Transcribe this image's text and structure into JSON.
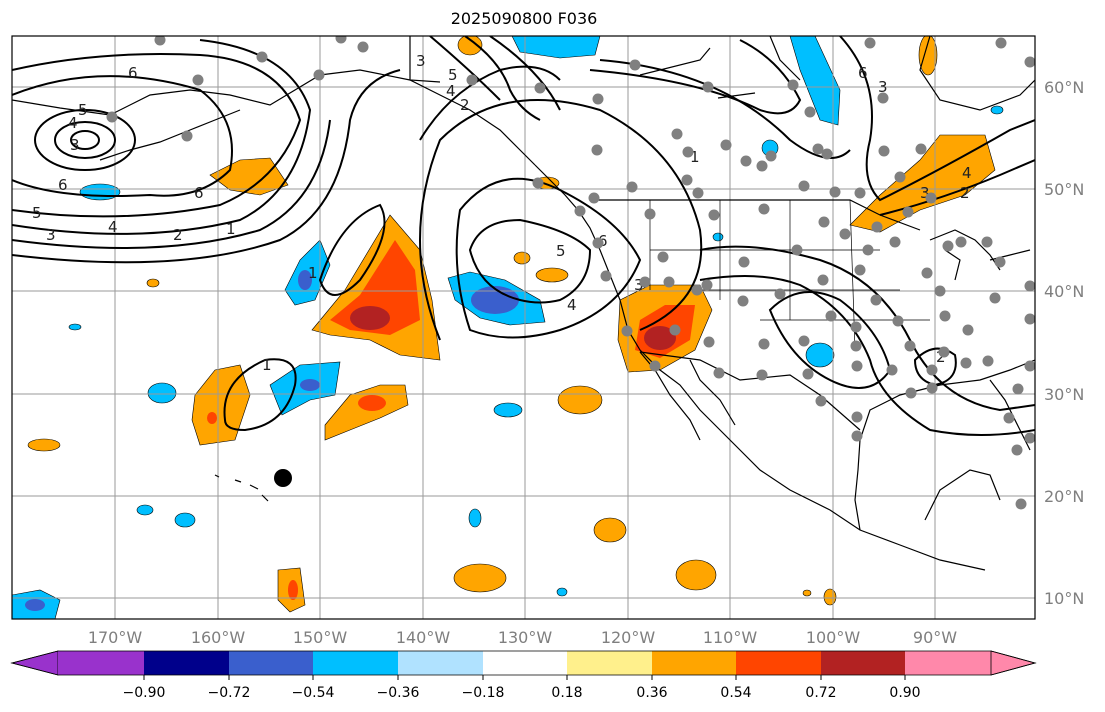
{
  "title": "2025090800 F036",
  "longitude_labels": [
    "170°W",
    "160°W",
    "150°W",
    "140°W",
    "130°W",
    "120°W",
    "110°W",
    "100°W",
    "90°W"
  ],
  "latitude_labels": [
    "60°N",
    "50°N",
    "40°N",
    "30°N",
    "20°N",
    "10°N"
  ],
  "colorbar": {
    "ticks": [
      "−0.90",
      "−0.72",
      "−0.54",
      "−0.36",
      "−0.18",
      "0.18",
      "0.36",
      "0.54",
      "0.72",
      "0.90"
    ],
    "colors": [
      "#9932cc",
      "#00008b",
      "#3a5fcd",
      "#00bfff",
      "#b0e2ff",
      "#ffffff",
      "#fff08c",
      "#ffa500",
      "#ff4500",
      "#b22222",
      "#ff88aa"
    ]
  },
  "contour_labels": [
    "6",
    "5",
    "4",
    "3",
    "6",
    "5",
    "3",
    "4",
    "2",
    "1",
    "1",
    "1",
    "5",
    "3",
    "6",
    "4",
    "3",
    "4",
    "2",
    "6",
    "5",
    "4",
    "3",
    "2",
    "1",
    "6",
    "2",
    "3"
  ]
}
